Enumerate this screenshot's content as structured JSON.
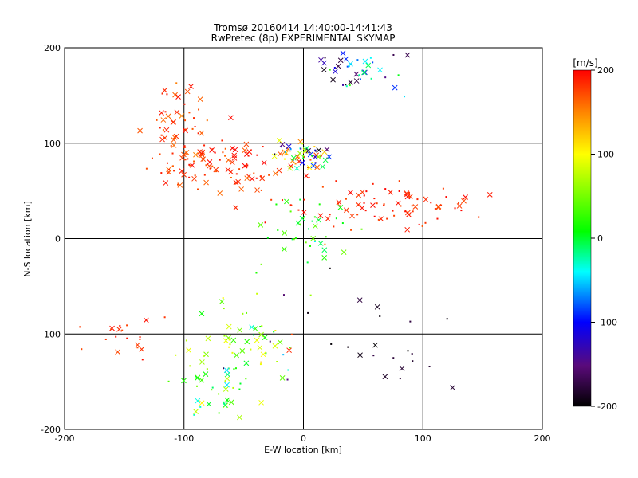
{
  "chart_data": {
    "type": "scatter",
    "title": "Tromsø 20160414 14:40:00-14:41:43",
    "subtitle": "RwPretec (8p) EXPERIMENTAL SKYMAP",
    "xlabel": "E-W location [km]",
    "ylabel": "N-S location [km]",
    "xlim": [
      -200,
      200
    ],
    "ylim": [
      -200,
      200
    ],
    "xticks": [
      "-200",
      "-100",
      "0",
      "100",
      "200"
    ],
    "yticks": [
      "-200",
      "-100",
      "0",
      "100",
      "200"
    ],
    "grid": true,
    "colorbar": {
      "label": "[m/s]",
      "range": [
        -200,
        200
      ],
      "ticks": [
        "200",
        "100",
        "0",
        "-100",
        "-200"
      ]
    },
    "clusters": [
      {
        "cx": -105,
        "cy": 120,
        "sx": 12,
        "sy": 20,
        "n": 45,
        "vmin": 150,
        "vmax": 200
      },
      {
        "cx": -85,
        "cy": 80,
        "sx": 22,
        "sy": 15,
        "n": 70,
        "vmin": 160,
        "vmax": 200
      },
      {
        "cx": -50,
        "cy": 75,
        "sx": 25,
        "sy": 15,
        "n": 40,
        "vmin": 160,
        "vmax": 200
      },
      {
        "cx": -5,
        "cy": 88,
        "sx": 15,
        "sy": 7,
        "n": 55,
        "vmin": -200,
        "vmax": 200
      },
      {
        "cx": 70,
        "cy": 35,
        "sx": 45,
        "sy": 12,
        "n": 90,
        "vmin": 170,
        "vmax": 200
      },
      {
        "cx": 45,
        "cy": 180,
        "sx": 20,
        "sy": 12,
        "n": 45,
        "vmin": -200,
        "vmax": 40
      },
      {
        "cx": 5,
        "cy": 10,
        "sx": 20,
        "sy": 18,
        "n": 35,
        "vmin": -10,
        "vmax": 50
      },
      {
        "cx": -55,
        "cy": -120,
        "sx": 25,
        "sy": 30,
        "n": 60,
        "vmin": -10,
        "vmax": 110
      },
      {
        "cx": -80,
        "cy": -165,
        "sx": 15,
        "sy": 15,
        "n": 25,
        "vmin": -50,
        "vmax": 90
      },
      {
        "cx": -150,
        "cy": -100,
        "sx": 20,
        "sy": 15,
        "n": 20,
        "vmin": 170,
        "vmax": 200
      },
      {
        "cx": 70,
        "cy": -110,
        "sx": 30,
        "sy": 40,
        "n": 20,
        "vmin": -200,
        "vmax": -170
      },
      {
        "cx": -10,
        "cy": -80,
        "sx": 30,
        "sy": 50,
        "n": 20,
        "vmin": -200,
        "vmax": 200
      }
    ]
  }
}
